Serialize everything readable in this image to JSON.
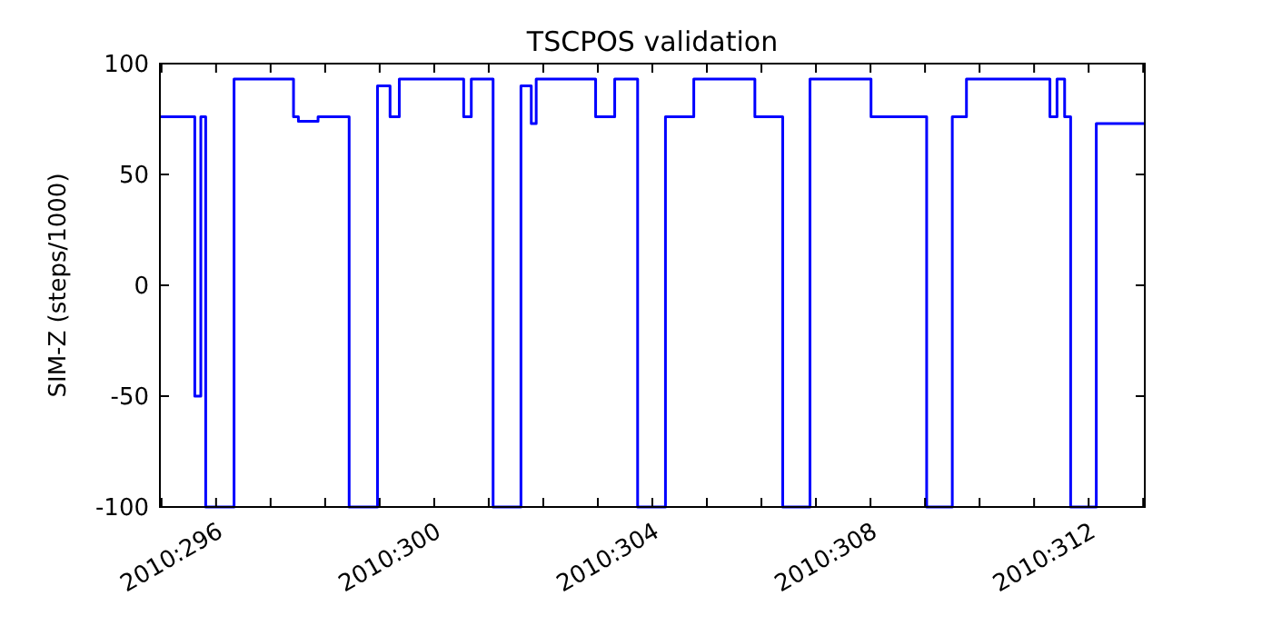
{
  "chart_data": {
    "type": "step",
    "title": "TSCPOS validation",
    "ylabel": "SIM-Z (steps/1000)",
    "x": [
      "2010-10-21T23:17",
      "2010-10-22T14:38",
      "2010-10-22T17:17",
      "2010-10-22T19:26",
      "2010-10-23T07:55",
      "2010-10-24T10:05",
      "2010-10-24T12:14",
      "2010-10-24T20:53",
      "2010-10-25T10:34",
      "2010-10-25T23:02",
      "2010-10-26T04:34",
      "2010-10-26T08:38",
      "2010-10-27T12:58",
      "2010-10-27T16:19",
      "2010-10-28T01:55",
      "2010-10-28T14:10",
      "2010-10-28T18:43",
      "2010-10-28T20:53",
      "2010-10-29T23:02",
      "2010-10-30T07:26",
      "2010-10-30T17:31",
      "2010-10-31T05:46",
      "2010-10-31T18:14",
      "2010-11-01T21:07",
      "2010-11-02T09:22",
      "2010-11-02T21:22",
      "2010-11-04T00:14",
      "2010-11-05T00:43",
      "2010-11-05T12:00",
      "2010-11-05T18:14",
      "2010-11-07T06:58",
      "2010-11-07T10:05",
      "2010-11-07T13:26",
      "2010-11-07T16:05",
      "2010-11-08T03:22",
      "2010-11-09T00:43"
    ],
    "series": [
      {
        "color": "#0000ff",
        "values": [
          76,
          -50,
          76,
          -100,
          93,
          76,
          74,
          76,
          -100,
          90,
          76,
          93,
          76,
          93,
          -100,
          90,
          73,
          93,
          76,
          93,
          -100,
          76,
          93,
          76,
          -100,
          93,
          76,
          -100,
          76,
          93,
          76,
          93,
          76,
          -100,
          73,
          73
        ]
      }
    ],
    "xlim": [
      "2010-10-21T23:17",
      "2010-11-09T00:43"
    ],
    "xticks": [
      {
        "value": "2010-10-22",
        "label": null
      },
      {
        "value": "2010-10-23",
        "label": "2010:296"
      },
      {
        "value": "2010-10-24",
        "label": null
      },
      {
        "value": "2010-10-25",
        "label": null
      },
      {
        "value": "2010-10-26",
        "label": null
      },
      {
        "value": "2010-10-27",
        "label": "2010:300"
      },
      {
        "value": "2010-10-28",
        "label": null
      },
      {
        "value": "2010-10-29",
        "label": null
      },
      {
        "value": "2010-10-30",
        "label": null
      },
      {
        "value": "2010-10-31",
        "label": "2010:304"
      },
      {
        "value": "2010-11-01",
        "label": null
      },
      {
        "value": "2010-11-02",
        "label": null
      },
      {
        "value": "2010-11-03",
        "label": null
      },
      {
        "value": "2010-11-04",
        "label": "2010:308"
      },
      {
        "value": "2010-11-05",
        "label": null
      },
      {
        "value": "2010-11-06",
        "label": null
      },
      {
        "value": "2010-11-07",
        "label": null
      },
      {
        "value": "2010-11-08",
        "label": "2010:312"
      },
      {
        "value": "2010-11-09",
        "label": null
      }
    ],
    "ylim": [
      -100,
      100
    ],
    "yticks": [
      -100,
      -50,
      0,
      50,
      100
    ],
    "grid": false,
    "marker": "none",
    "line_style": "solid"
  }
}
